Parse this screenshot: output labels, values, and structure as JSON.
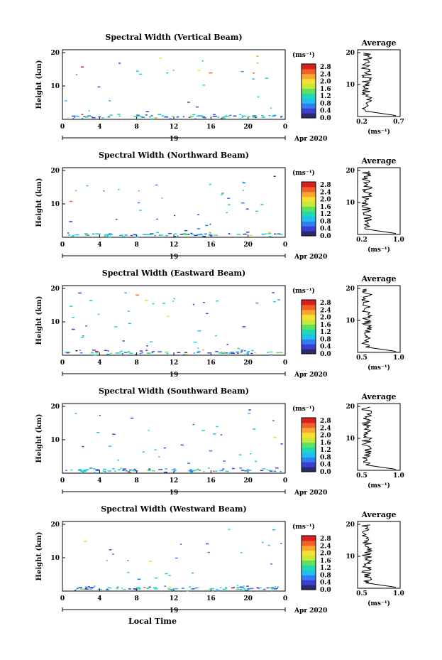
{
  "chart_data": [
    {
      "type": "heatmap",
      "title": "Spectral Width (Vertical Beam)",
      "ylabel": "Height (km)",
      "x_ticks": [
        "0",
        "4",
        "8",
        "12",
        "16",
        "20",
        "0"
      ],
      "y_ticks": [
        "20",
        "10"
      ],
      "date_label": "19",
      "month_year": "Apr 2020",
      "colorbar": {
        "unit": "(ms⁻¹)",
        "ticks": [
          "2.8",
          "2.4",
          "2.0",
          "1.6",
          "1.2",
          "0.8",
          "0.4",
          "0.0"
        ]
      },
      "average": {
        "title": "Average",
        "xlabel": "(ms⁻¹)",
        "x_ticks": [
          "0.2",
          "0.7"
        ],
        "y_ticks": [
          "20",
          "10"
        ]
      }
    },
    {
      "type": "heatmap",
      "title": "Spectral Width (Northward Beam)",
      "ylabel": "Height (km)",
      "x_ticks": [
        "0",
        "4",
        "8",
        "12",
        "16",
        "20",
        "0"
      ],
      "y_ticks": [
        "20",
        "10"
      ],
      "date_label": "19",
      "month_year": "Apr 2020",
      "colorbar": {
        "unit": "(ms⁻¹)",
        "ticks": [
          "2.8",
          "2.4",
          "2.0",
          "1.6",
          "1.2",
          "0.8",
          "0.4",
          "0.0"
        ]
      },
      "average": {
        "title": "Average",
        "xlabel": "(ms⁻¹)",
        "x_ticks": [
          "0.2",
          "1.0"
        ],
        "y_ticks": [
          "20",
          "10"
        ]
      }
    },
    {
      "type": "heatmap",
      "title": "Spectral Width (Eastward Beam)",
      "ylabel": "Height (km)",
      "x_ticks": [
        "0",
        "4",
        "8",
        "12",
        "16",
        "20",
        "0"
      ],
      "y_ticks": [
        "20",
        "10"
      ],
      "date_label": "19",
      "month_year": "Apr 2020",
      "colorbar": {
        "unit": "(ms⁻¹)",
        "ticks": [
          "2.8",
          "2.4",
          "2.0",
          "1.6",
          "1.2",
          "0.8",
          "0.4",
          "0.0"
        ]
      },
      "average": {
        "title": "Average",
        "xlabel": "(ms⁻¹)",
        "x_ticks": [
          "0.5",
          "1.0"
        ],
        "y_ticks": [
          "20",
          "10"
        ]
      }
    },
    {
      "type": "heatmap",
      "title": "Spectral Width (Southward Beam)",
      "ylabel": "Height (km)",
      "x_ticks": [
        "0",
        "4",
        "8",
        "12",
        "16",
        "20",
        "0"
      ],
      "y_ticks": [
        "20",
        "10"
      ],
      "date_label": "19",
      "month_year": "Apr 2020",
      "colorbar": {
        "unit": "(ms⁻¹)",
        "ticks": [
          "2.8",
          "2.4",
          "2.0",
          "1.6",
          "1.2",
          "0.8",
          "0.4",
          "0.0"
        ]
      },
      "average": {
        "title": "Average",
        "xlabel": "(ms⁻¹)",
        "x_ticks": [
          "0.5",
          "1.0"
        ],
        "y_ticks": [
          "20",
          "10"
        ]
      }
    },
    {
      "type": "heatmap",
      "title": "Spectral Width (Westward Beam)",
      "ylabel": "Height (km)",
      "x_ticks": [
        "0",
        "4",
        "8",
        "12",
        "16",
        "20",
        "0"
      ],
      "y_ticks": [
        "20",
        "10"
      ],
      "date_label": "19",
      "month_year": "Apr 2020",
      "colorbar": {
        "unit": "(ms⁻¹)",
        "ticks": [
          "2.8",
          "2.4",
          "2.0",
          "1.6",
          "1.2",
          "0.8",
          "0.4",
          "0.0"
        ]
      },
      "average": {
        "title": "Average",
        "xlabel": "(ms⁻¹)",
        "x_ticks": [
          "0.5",
          "1.0"
        ],
        "y_ticks": [
          "20",
          "10"
        ]
      },
      "xlabel": "Local Time"
    }
  ],
  "colorscale": [
    "#2a2a6e",
    "#3a3fd0",
    "#2f7ff0",
    "#1fc0f0",
    "#22d8b0",
    "#5ee060",
    "#c8e838",
    "#f8e030",
    "#f8a830",
    "#f06028",
    "#d82020"
  ]
}
